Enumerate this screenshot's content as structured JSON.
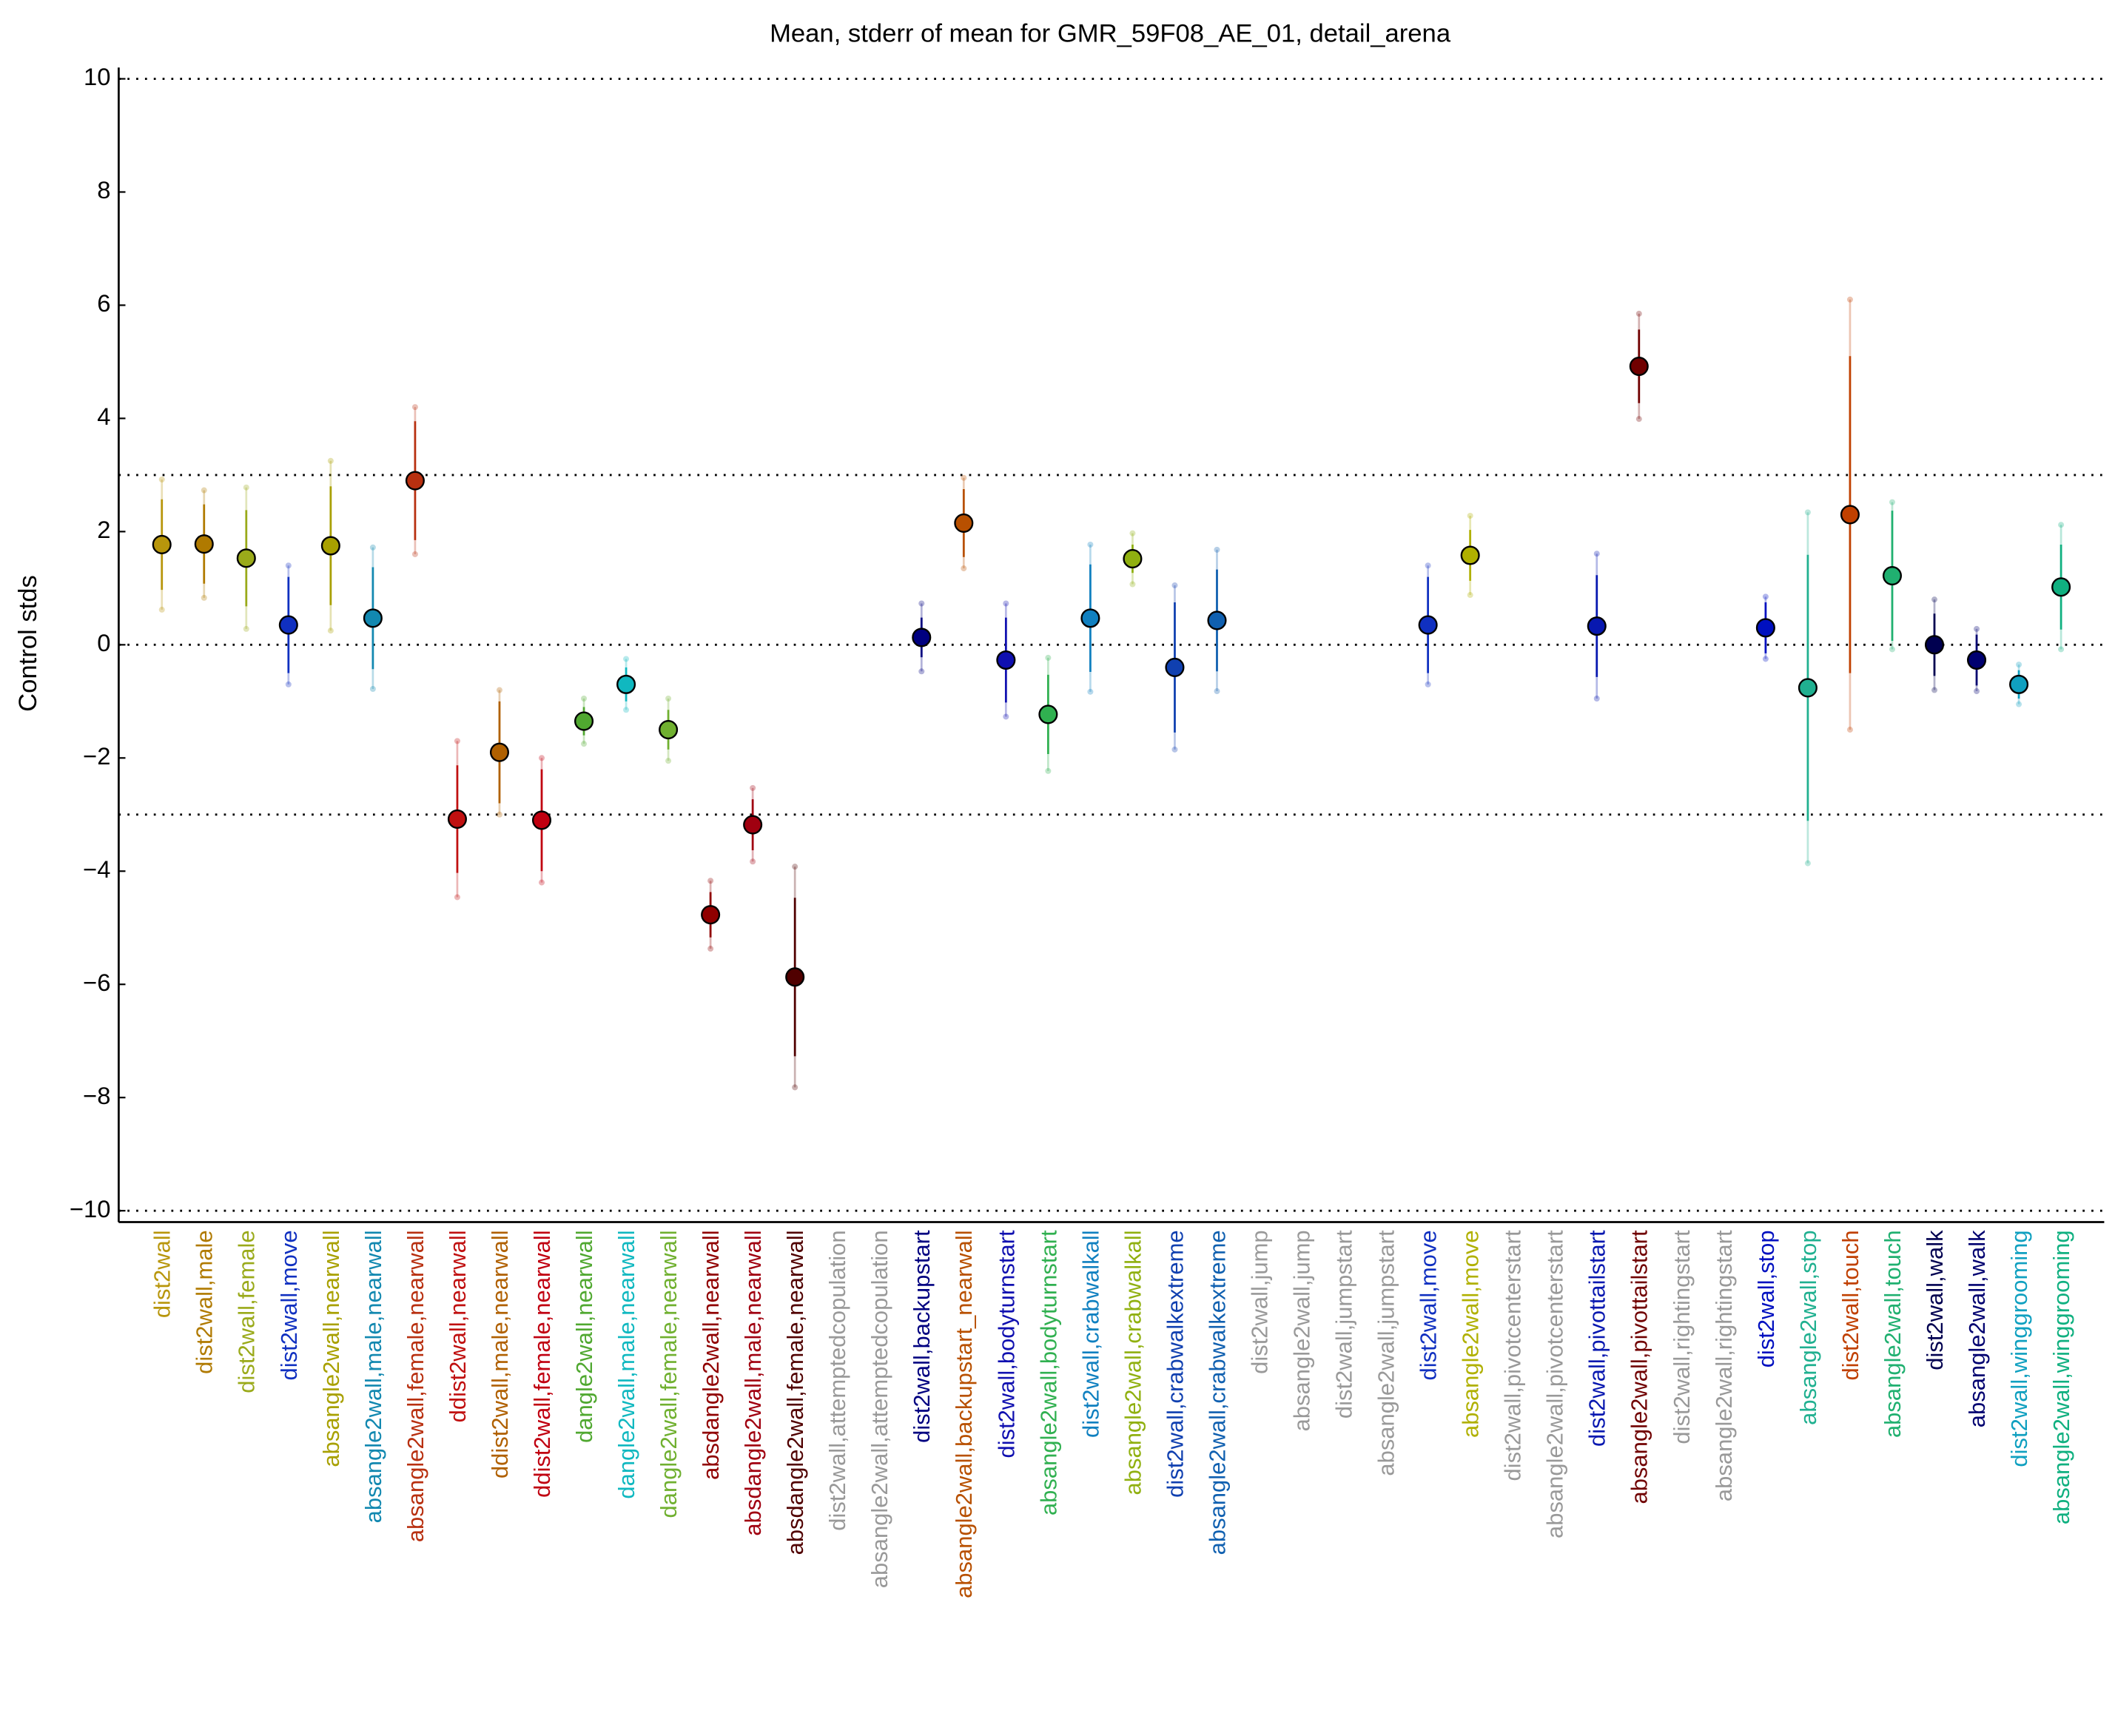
{
  "chart_data": {
    "type": "errorbar",
    "title": "Mean, stderr of mean for GMR_59F08_AE_01, detail_arena",
    "y_label": "Control stds",
    "categories": [
      "dist2wall",
      "dist2wall,male",
      "dist2wall,female",
      "dist2wall,move",
      "absangle2wall,nearwall",
      "absangle2wall,male,nearwall",
      "absangle2wall,female,nearwall",
      "ddist2wall,nearwall",
      "ddist2wall,male,nearwall",
      "ddist2wall,female,nearwall",
      "dangle2wall,nearwall",
      "dangle2wall,male,nearwall",
      "dangle2wall,female,nearwall",
      "absdangle2wall,nearwall",
      "absdangle2wall,male,nearwall",
      "absdangle2wall,female,nearwall",
      "dist2wall,attemptedcopulation",
      "absangle2wall,attemptedcopulation",
      "dist2wall,backupstart",
      "absangle2wall,backupstart_nearwall",
      "dist2wall,bodyturnstart",
      "absangle2wall,bodyturnstart",
      "dist2wall,crabwalkall",
      "absangle2wall,crabwalkall",
      "dist2wall,crabwalkextreme",
      "absangle2wall,crabwalkextreme",
      "dist2wall,jump",
      "absangle2wall,jump",
      "dist2wall,jumpstart",
      "absangle2wall,jumpstart",
      "dist2wall,move",
      "absangle2wall,move",
      "dist2wall,pivotcenterstart",
      "absangle2wall,pivotcenterstart",
      "dist2wall,pivottailstart",
      "absangle2wall,pivottailstart",
      "dist2wall,rightingstart",
      "absangle2wall,rightingstart",
      "dist2wall,stop",
      "absangle2wall,stop",
      "dist2wall,touch",
      "absangle2wall,touch",
      "dist2wall,walk",
      "absangle2wall,walk",
      "dist2wall,winggrooming",
      "absangle2wall,winggrooming"
    ],
    "values": [
      1.77,
      1.78,
      1.53,
      0.35,
      1.75,
      0.47,
      2.9,
      -3.08,
      -1.9,
      -3.1,
      -1.35,
      -0.7,
      -1.5,
      -4.77,
      -3.18,
      -5.87,
      null,
      null,
      0.13,
      2.15,
      -0.27,
      -1.23,
      0.47,
      1.52,
      -0.4,
      0.43,
      null,
      null,
      null,
      null,
      0.35,
      1.58,
      null,
      null,
      0.33,
      4.92,
      null,
      null,
      0.3,
      -0.76,
      2.3,
      1.22,
      0.0,
      -0.27,
      -0.7,
      1.02
    ],
    "errors": [
      0.8,
      0.7,
      0.85,
      0.85,
      1.05,
      0.9,
      1.05,
      0.95,
      0.9,
      0.9,
      0.25,
      0.3,
      0.35,
      0.4,
      0.45,
      1.4,
      null,
      null,
      0.35,
      0.6,
      0.75,
      0.7,
      0.95,
      0.25,
      1.15,
      0.9,
      null,
      null,
      null,
      null,
      0.85,
      0.45,
      null,
      null,
      0.9,
      0.65,
      null,
      null,
      0.45,
      2.35,
      2.8,
      1.15,
      0.55,
      0.45,
      0.25,
      0.75
    ],
    "spread": [
      1.15,
      0.95,
      1.25,
      1.05,
      1.5,
      1.25,
      1.3,
      1.38,
      1.1,
      1.1,
      0.4,
      0.45,
      0.55,
      0.6,
      0.65,
      1.95,
      null,
      null,
      0.6,
      0.8,
      1.0,
      1.0,
      1.3,
      0.45,
      1.45,
      1.25,
      null,
      null,
      null,
      null,
      1.05,
      0.7,
      null,
      null,
      1.28,
      0.93,
      null,
      null,
      0.55,
      3.1,
      3.8,
      1.3,
      0.8,
      0.55,
      0.35,
      1.1
    ],
    "colors": [
      "#b8960c",
      "#b07a00",
      "#9aaa1a",
      "#1030c0",
      "#a8a000",
      "#1288b0",
      "#b83010",
      "#c01010",
      "#b06000",
      "#c00010",
      "#50a830",
      "#10b8c0",
      "#70b030",
      "#900000",
      "#a00010",
      "#500000",
      "#999999",
      "#999999",
      "#000080",
      "#b85000",
      "#1010b0",
      "#30b050",
      "#1080c0",
      "#90b010",
      "#1040b0",
      "#1060b0",
      "#999999",
      "#999999",
      "#999999",
      "#999999",
      "#1030c0",
      "#b0b000",
      "#999999",
      "#999999",
      "#0818b0",
      "#700000",
      "#999999",
      "#999999",
      "#0010c0",
      "#20b090",
      "#c04000",
      "#20b070",
      "#000050",
      "#000070",
      "#10a0c0",
      "#10b080"
    ],
    "ylim": [
      -10.2,
      10.2
    ],
    "yticks": [
      {
        "value": -10,
        "label": "−10"
      },
      {
        "value": -8,
        "label": "−8"
      },
      {
        "value": -6,
        "label": "−6"
      },
      {
        "value": -4,
        "label": "−4"
      },
      {
        "value": -2,
        "label": "−2"
      },
      0,
      2,
      4,
      6,
      8,
      10
    ],
    "reference_lines": [
      10,
      3,
      0,
      -3,
      -10
    ]
  }
}
